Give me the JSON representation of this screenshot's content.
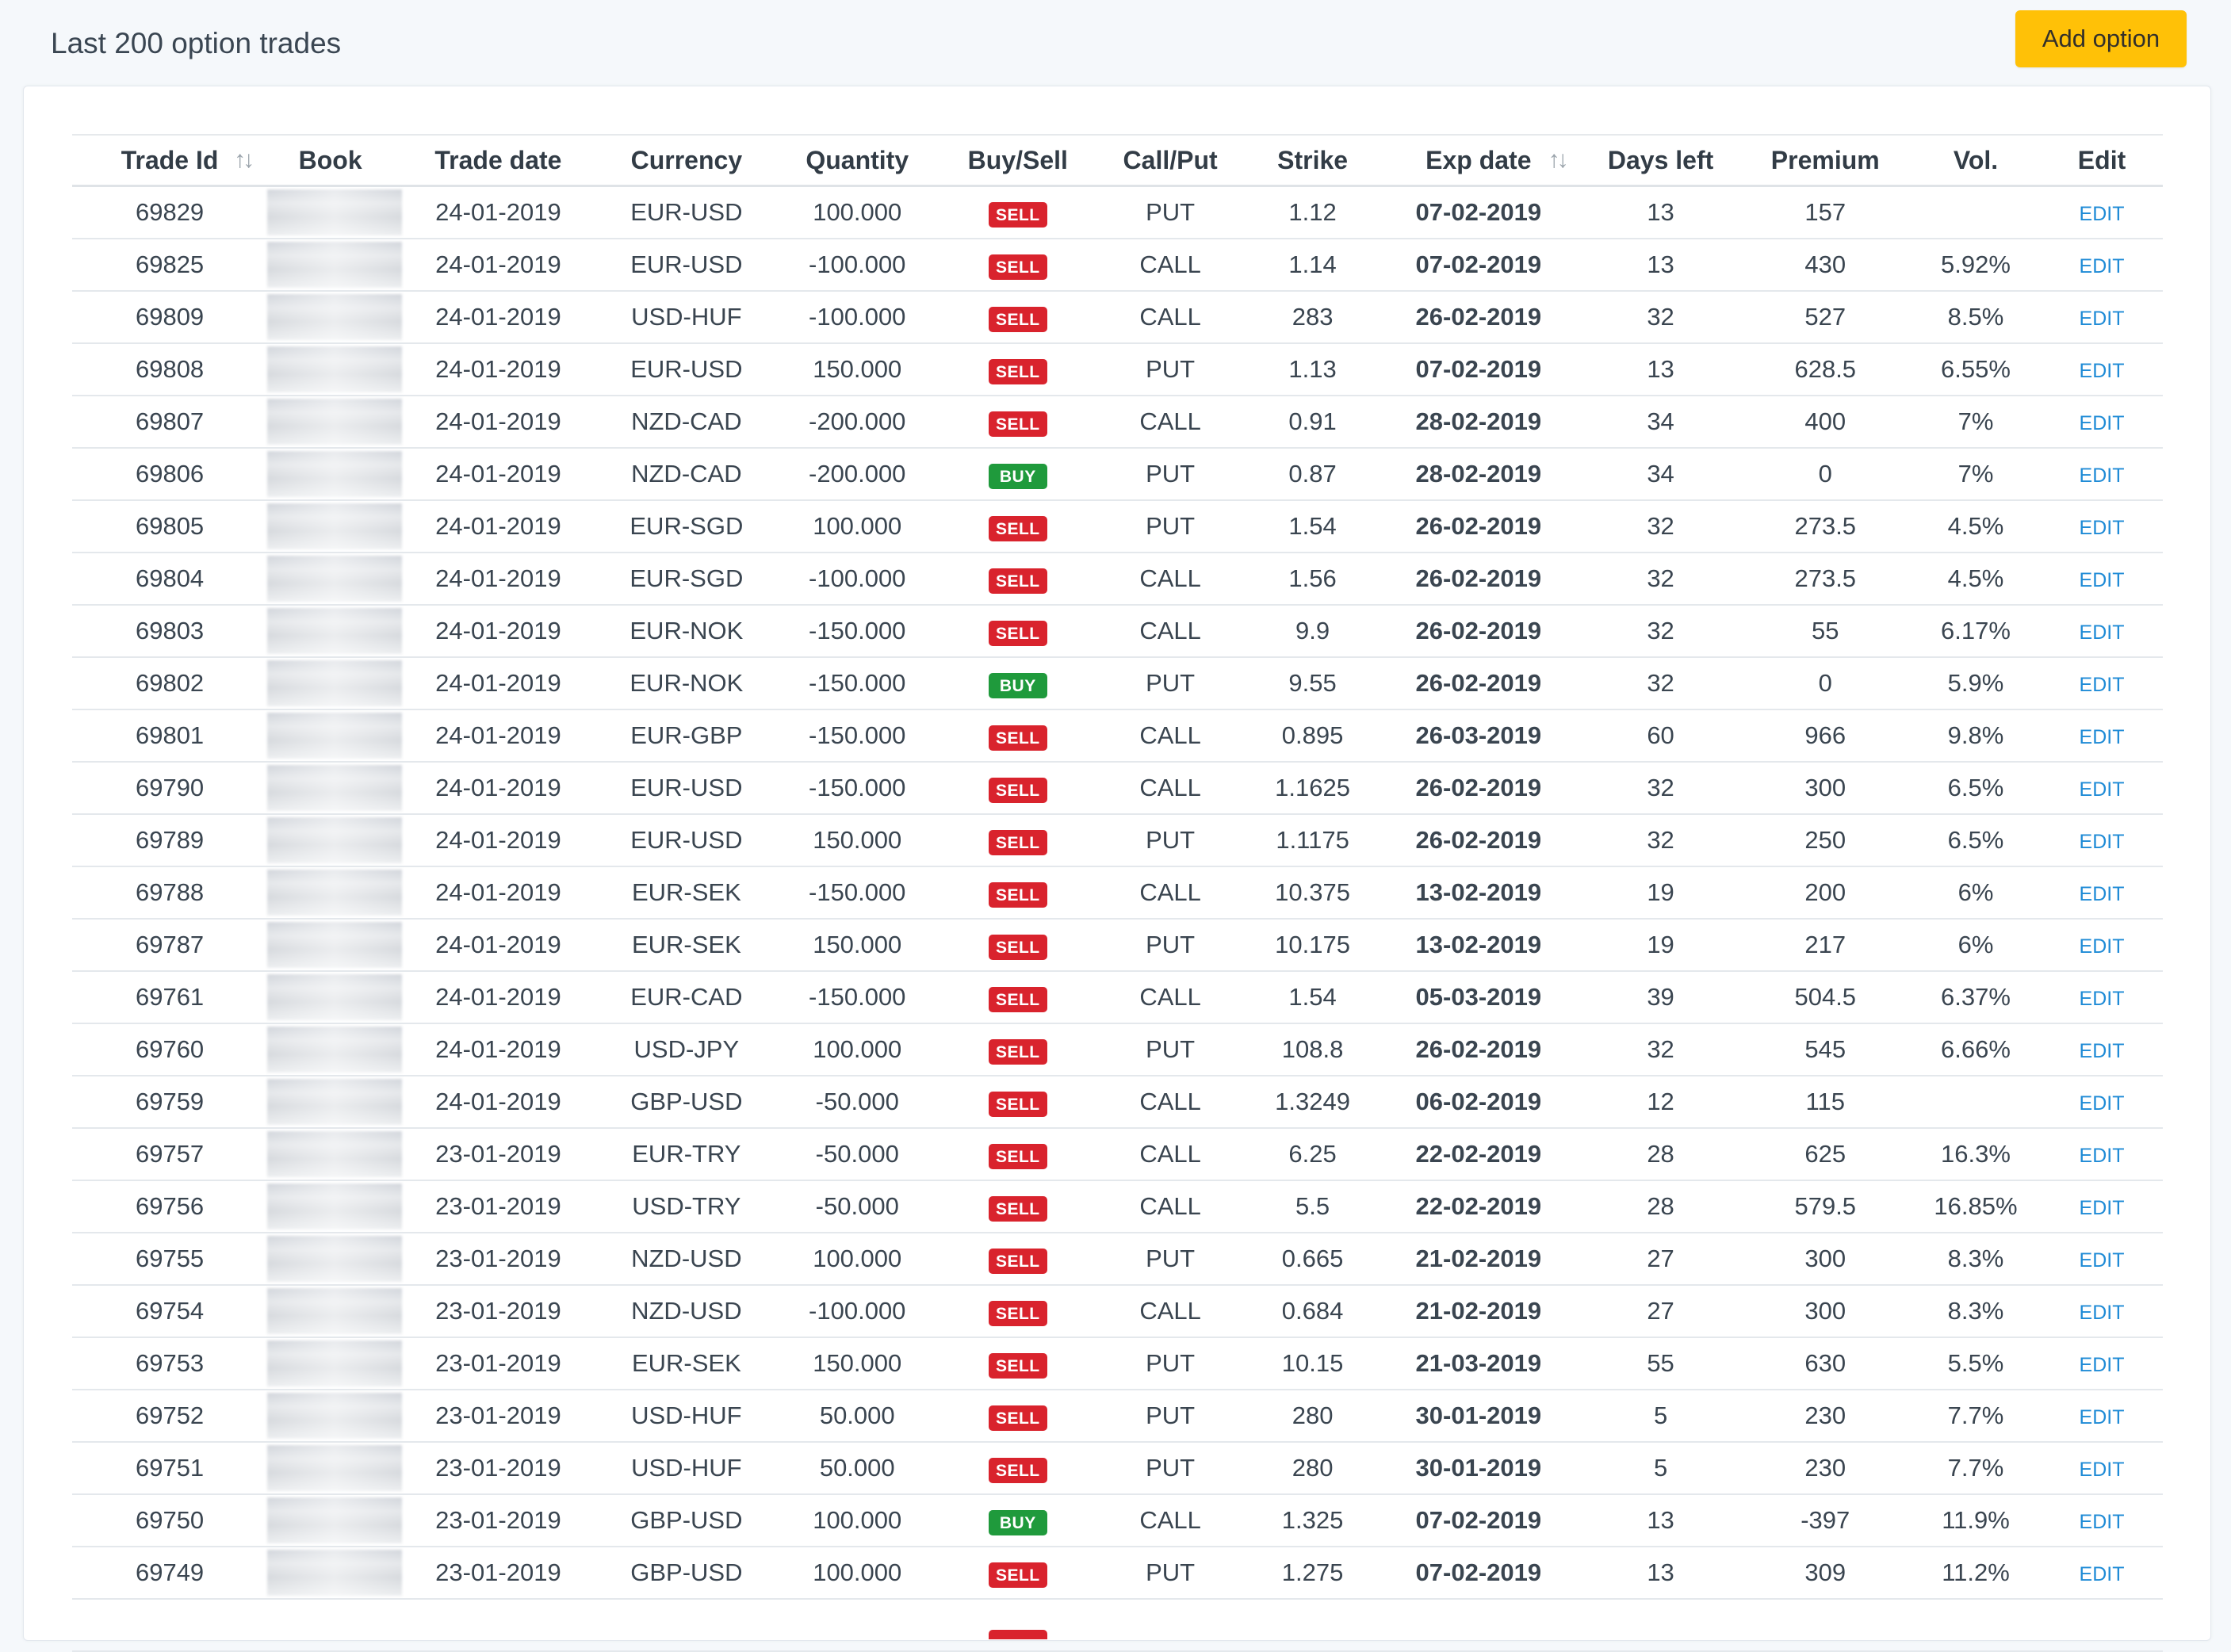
{
  "header": {
    "title": "Last 200 option trades",
    "add_button_label": "Add option"
  },
  "colors": {
    "accent_button": "#ffc107",
    "positive": "#2e9e2e",
    "negative": "#e3252b",
    "sell_badge": "#d9232d",
    "buy_badge": "#1f9a3c",
    "link": "#1f8bd6"
  },
  "table": {
    "columns": [
      "Trade Id",
      "Book",
      "Trade date",
      "Currency",
      "Quantity",
      "Buy/Sell",
      "Call/Put",
      "Strike",
      "Exp date",
      "Days left",
      "Premium",
      "Vol.",
      "Edit"
    ],
    "sortable_columns": [
      "Trade Id",
      "Exp date"
    ],
    "edit_label": "EDIT",
    "rows": [
      {
        "id": "69829",
        "trade_date": "24-01-2019",
        "currency": "EUR-USD",
        "quantity": "100.000",
        "side": "SELL",
        "type": "PUT",
        "strike": "1.12",
        "exp_date": "07-02-2019",
        "days_left": "13",
        "premium": "157",
        "vol": ""
      },
      {
        "id": "69825",
        "trade_date": "24-01-2019",
        "currency": "EUR-USD",
        "quantity": "-100.000",
        "side": "SELL",
        "type": "CALL",
        "strike": "1.14",
        "exp_date": "07-02-2019",
        "days_left": "13",
        "premium": "430",
        "vol": "5.92%"
      },
      {
        "id": "69809",
        "trade_date": "24-01-2019",
        "currency": "USD-HUF",
        "quantity": "-100.000",
        "side": "SELL",
        "type": "CALL",
        "strike": "283",
        "exp_date": "26-02-2019",
        "days_left": "32",
        "premium": "527",
        "vol": "8.5%"
      },
      {
        "id": "69808",
        "trade_date": "24-01-2019",
        "currency": "EUR-USD",
        "quantity": "150.000",
        "side": "SELL",
        "type": "PUT",
        "strike": "1.13",
        "exp_date": "07-02-2019",
        "days_left": "13",
        "premium": "628.5",
        "vol": "6.55%"
      },
      {
        "id": "69807",
        "trade_date": "24-01-2019",
        "currency": "NZD-CAD",
        "quantity": "-200.000",
        "side": "SELL",
        "type": "CALL",
        "strike": "0.91",
        "exp_date": "28-02-2019",
        "days_left": "34",
        "premium": "400",
        "vol": "7%"
      },
      {
        "id": "69806",
        "trade_date": "24-01-2019",
        "currency": "NZD-CAD",
        "quantity": "-200.000",
        "side": "BUY",
        "type": "PUT",
        "strike": "0.87",
        "exp_date": "28-02-2019",
        "days_left": "34",
        "premium": "0",
        "vol": "7%"
      },
      {
        "id": "69805",
        "trade_date": "24-01-2019",
        "currency": "EUR-SGD",
        "quantity": "100.000",
        "side": "SELL",
        "type": "PUT",
        "strike": "1.54",
        "exp_date": "26-02-2019",
        "days_left": "32",
        "premium": "273.5",
        "vol": "4.5%"
      },
      {
        "id": "69804",
        "trade_date": "24-01-2019",
        "currency": "EUR-SGD",
        "quantity": "-100.000",
        "side": "SELL",
        "type": "CALL",
        "strike": "1.56",
        "exp_date": "26-02-2019",
        "days_left": "32",
        "premium": "273.5",
        "vol": "4.5%"
      },
      {
        "id": "69803",
        "trade_date": "24-01-2019",
        "currency": "EUR-NOK",
        "quantity": "-150.000",
        "side": "SELL",
        "type": "CALL",
        "strike": "9.9",
        "exp_date": "26-02-2019",
        "days_left": "32",
        "premium": "55",
        "vol": "6.17%"
      },
      {
        "id": "69802",
        "trade_date": "24-01-2019",
        "currency": "EUR-NOK",
        "quantity": "-150.000",
        "side": "BUY",
        "type": "PUT",
        "strike": "9.55",
        "exp_date": "26-02-2019",
        "days_left": "32",
        "premium": "0",
        "vol": "5.9%"
      },
      {
        "id": "69801",
        "trade_date": "24-01-2019",
        "currency": "EUR-GBP",
        "quantity": "-150.000",
        "side": "SELL",
        "type": "CALL",
        "strike": "0.895",
        "exp_date": "26-03-2019",
        "days_left": "60",
        "premium": "966",
        "vol": "9.8%"
      },
      {
        "id": "69790",
        "trade_date": "24-01-2019",
        "currency": "EUR-USD",
        "quantity": "-150.000",
        "side": "SELL",
        "type": "CALL",
        "strike": "1.1625",
        "exp_date": "26-02-2019",
        "days_left": "32",
        "premium": "300",
        "vol": "6.5%"
      },
      {
        "id": "69789",
        "trade_date": "24-01-2019",
        "currency": "EUR-USD",
        "quantity": "150.000",
        "side": "SELL",
        "type": "PUT",
        "strike": "1.1175",
        "exp_date": "26-02-2019",
        "days_left": "32",
        "premium": "250",
        "vol": "6.5%"
      },
      {
        "id": "69788",
        "trade_date": "24-01-2019",
        "currency": "EUR-SEK",
        "quantity": "-150.000",
        "side": "SELL",
        "type": "CALL",
        "strike": "10.375",
        "exp_date": "13-02-2019",
        "days_left": "19",
        "premium": "200",
        "vol": "6%"
      },
      {
        "id": "69787",
        "trade_date": "24-01-2019",
        "currency": "EUR-SEK",
        "quantity": "150.000",
        "side": "SELL",
        "type": "PUT",
        "strike": "10.175",
        "exp_date": "13-02-2019",
        "days_left": "19",
        "premium": "217",
        "vol": "6%"
      },
      {
        "id": "69761",
        "trade_date": "24-01-2019",
        "currency": "EUR-CAD",
        "quantity": "-150.000",
        "side": "SELL",
        "type": "CALL",
        "strike": "1.54",
        "exp_date": "05-03-2019",
        "days_left": "39",
        "premium": "504.5",
        "vol": "6.37%"
      },
      {
        "id": "69760",
        "trade_date": "24-01-2019",
        "currency": "USD-JPY",
        "quantity": "100.000",
        "side": "SELL",
        "type": "PUT",
        "strike": "108.8",
        "exp_date": "26-02-2019",
        "days_left": "32",
        "premium": "545",
        "vol": "6.66%"
      },
      {
        "id": "69759",
        "trade_date": "24-01-2019",
        "currency": "GBP-USD",
        "quantity": "-50.000",
        "side": "SELL",
        "type": "CALL",
        "strike": "1.3249",
        "exp_date": "06-02-2019",
        "days_left": "12",
        "premium": "115",
        "vol": ""
      },
      {
        "id": "69757",
        "trade_date": "23-01-2019",
        "currency": "EUR-TRY",
        "quantity": "-50.000",
        "side": "SELL",
        "type": "CALL",
        "strike": "6.25",
        "exp_date": "22-02-2019",
        "days_left": "28",
        "premium": "625",
        "vol": "16.3%"
      },
      {
        "id": "69756",
        "trade_date": "23-01-2019",
        "currency": "USD-TRY",
        "quantity": "-50.000",
        "side": "SELL",
        "type": "CALL",
        "strike": "5.5",
        "exp_date": "22-02-2019",
        "days_left": "28",
        "premium": "579.5",
        "vol": "16.85%"
      },
      {
        "id": "69755",
        "trade_date": "23-01-2019",
        "currency": "NZD-USD",
        "quantity": "100.000",
        "side": "SELL",
        "type": "PUT",
        "strike": "0.665",
        "exp_date": "21-02-2019",
        "days_left": "27",
        "premium": "300",
        "vol": "8.3%"
      },
      {
        "id": "69754",
        "trade_date": "23-01-2019",
        "currency": "NZD-USD",
        "quantity": "-100.000",
        "side": "SELL",
        "type": "CALL",
        "strike": "0.684",
        "exp_date": "21-02-2019",
        "days_left": "27",
        "premium": "300",
        "vol": "8.3%"
      },
      {
        "id": "69753",
        "trade_date": "23-01-2019",
        "currency": "EUR-SEK",
        "quantity": "150.000",
        "side": "SELL",
        "type": "PUT",
        "strike": "10.15",
        "exp_date": "21-03-2019",
        "days_left": "55",
        "premium": "630",
        "vol": "5.5%"
      },
      {
        "id": "69752",
        "trade_date": "23-01-2019",
        "currency": "USD-HUF",
        "quantity": "50.000",
        "side": "SELL",
        "type": "PUT",
        "strike": "280",
        "exp_date": "30-01-2019",
        "days_left": "5",
        "premium": "230",
        "vol": "7.7%"
      },
      {
        "id": "69751",
        "trade_date": "23-01-2019",
        "currency": "USD-HUF",
        "quantity": "50.000",
        "side": "SELL",
        "type": "PUT",
        "strike": "280",
        "exp_date": "30-01-2019",
        "days_left": "5",
        "premium": "230",
        "vol": "7.7%"
      },
      {
        "id": "69750",
        "trade_date": "23-01-2019",
        "currency": "GBP-USD",
        "quantity": "100.000",
        "side": "BUY",
        "type": "CALL",
        "strike": "1.325",
        "exp_date": "07-02-2019",
        "days_left": "13",
        "premium": "-397",
        "vol": "11.9%"
      },
      {
        "id": "69749",
        "trade_date": "23-01-2019",
        "currency": "GBP-USD",
        "quantity": "100.000",
        "side": "SELL",
        "type": "PUT",
        "strike": "1.275",
        "exp_date": "07-02-2019",
        "days_left": "13",
        "premium": "309",
        "vol": "11.2%"
      }
    ]
  }
}
